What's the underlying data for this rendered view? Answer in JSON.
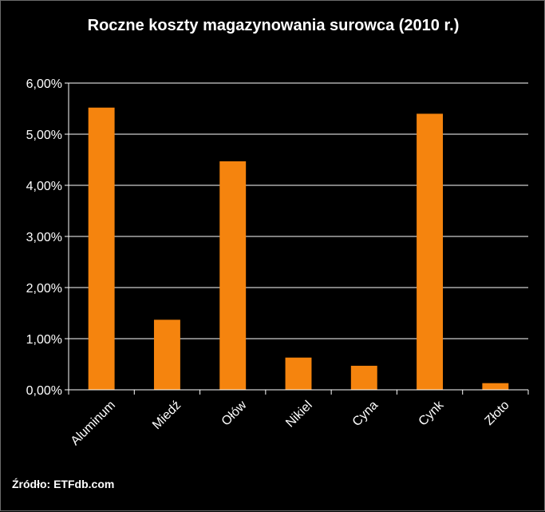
{
  "chart_data": {
    "type": "bar",
    "title": "Roczne koszty magazynowania surowca  (2010 r.)",
    "categories": [
      "Aluminum",
      "Miedź",
      "Ołów",
      "Nikiel",
      "Cyna",
      "Cynk",
      "Złoto"
    ],
    "values": [
      5.52,
      1.37,
      4.47,
      0.63,
      0.47,
      5.4,
      0.13
    ],
    "ylim": [
      0,
      6
    ],
    "yticks": [
      "0,00%",
      "1,00%",
      "2,00%",
      "3,00%",
      "4,00%",
      "5,00%",
      "6,00%"
    ],
    "grid": true,
    "xlabel": "",
    "ylabel": "",
    "bar_color": "#f5840e",
    "gridline_color": "#ffffff",
    "background": "#000000"
  },
  "source_text": "Źródło: ETFdb.com"
}
